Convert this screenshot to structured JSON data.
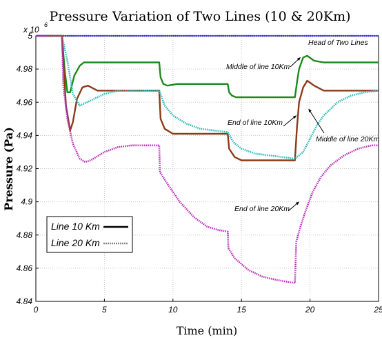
{
  "chart_data": {
    "type": "line",
    "title": "Pressure Variation of  Two Lines (10 & 20Km)",
    "xlabel": "Time (min)",
    "ylabel": "Pressure  (Pa)",
    "y_multiplier": "x 10",
    "y_multiplier_exp": "6",
    "xlim": [
      0,
      25
    ],
    "ylim": [
      4.84,
      5.0
    ],
    "x_ticks": [
      "0",
      "5",
      "10",
      "15",
      "20",
      "25"
    ],
    "y_ticks": [
      "4.84",
      "4.86",
      "4.88",
      "4.9",
      "4.92",
      "4.94",
      "4.96",
      "4.98",
      "5"
    ],
    "grid": true,
    "legend_position": "bottom-left",
    "legend": [
      {
        "label": "Line 10 Km",
        "color": "#000000",
        "style": "solid"
      },
      {
        "label": "Line 20 Km",
        "color": "#888888",
        "style": "dotted"
      }
    ],
    "annotations": [
      {
        "text": "Head of Two Lines",
        "at": [
          23.3,
          5.0
        ]
      },
      {
        "text": "Middle of line 10Km",
        "at": [
          19.3,
          4.987
        ]
      },
      {
        "text": "End of line 10Km",
        "at": [
          19.0,
          4.952
        ]
      },
      {
        "text": "Middle of line 20Km",
        "at": [
          19.9,
          4.956
        ]
      },
      {
        "text": "End of line 20Km",
        "at": [
          19.2,
          4.9
        ]
      }
    ],
    "series": [
      {
        "name": "Head of Two Lines",
        "color": "#3333dd",
        "style": "dotted",
        "points": [
          [
            0,
            5.0
          ],
          [
            25,
            5.0
          ]
        ]
      },
      {
        "name": "Middle of line 10Km",
        "color": "#1c8a1c",
        "style": "solid",
        "points": [
          [
            0,
            5.0
          ],
          [
            1.9,
            5.0
          ],
          [
            2.1,
            4.98
          ],
          [
            2.3,
            4.966
          ],
          [
            2.5,
            4.966
          ],
          [
            2.8,
            4.976
          ],
          [
            3.2,
            4.982
          ],
          [
            3.5,
            4.984
          ],
          [
            4.5,
            4.984
          ],
          [
            9.0,
            4.984
          ],
          [
            9.1,
            4.975
          ],
          [
            9.3,
            4.971
          ],
          [
            9.6,
            4.97
          ],
          [
            10.3,
            4.971
          ],
          [
            14.0,
            4.971
          ],
          [
            14.1,
            4.966
          ],
          [
            14.3,
            4.964
          ],
          [
            14.6,
            4.963
          ],
          [
            18.9,
            4.963
          ],
          [
            19.05,
            4.972
          ],
          [
            19.2,
            4.98
          ],
          [
            19.5,
            4.987
          ],
          [
            19.8,
            4.988
          ],
          [
            20.3,
            4.985
          ],
          [
            21.0,
            4.984
          ],
          [
            25,
            4.984
          ]
        ]
      },
      {
        "name": "End of line 10Km",
        "color": "#8b3a1a",
        "style": "solid",
        "points": [
          [
            0,
            5.0
          ],
          [
            1.9,
            5.0
          ],
          [
            2.0,
            4.985
          ],
          [
            2.2,
            4.958
          ],
          [
            2.5,
            4.943
          ],
          [
            2.7,
            4.948
          ],
          [
            3.0,
            4.962
          ],
          [
            3.4,
            4.969
          ],
          [
            3.8,
            4.97
          ],
          [
            4.5,
            4.967
          ],
          [
            9.0,
            4.967
          ],
          [
            9.1,
            4.95
          ],
          [
            9.4,
            4.944
          ],
          [
            10.0,
            4.941
          ],
          [
            14.0,
            4.941
          ],
          [
            14.1,
            4.932
          ],
          [
            14.5,
            4.927
          ],
          [
            15.0,
            4.925
          ],
          [
            18.9,
            4.925
          ],
          [
            19.05,
            4.945
          ],
          [
            19.2,
            4.96
          ],
          [
            19.5,
            4.969
          ],
          [
            19.8,
            4.973
          ],
          [
            20.3,
            4.97
          ],
          [
            21.0,
            4.967
          ],
          [
            25,
            4.967
          ]
        ]
      },
      {
        "name": "Middle of line 20Km",
        "color": "#33bbbb",
        "style": "dotted",
        "points": [
          [
            0,
            5.0
          ],
          [
            1.9,
            5.0
          ],
          [
            2.3,
            4.985
          ],
          [
            2.7,
            4.965
          ],
          [
            3.2,
            4.958
          ],
          [
            4.0,
            4.961
          ],
          [
            5.0,
            4.965
          ],
          [
            6.0,
            4.967
          ],
          [
            9.0,
            4.967
          ],
          [
            9.4,
            4.958
          ],
          [
            10.0,
            4.952
          ],
          [
            11.0,
            4.947
          ],
          [
            12.0,
            4.944
          ],
          [
            14.0,
            4.942
          ],
          [
            14.4,
            4.936
          ],
          [
            15.0,
            4.932
          ],
          [
            16.0,
            4.929
          ],
          [
            17.0,
            4.928
          ],
          [
            18.9,
            4.926
          ],
          [
            19.5,
            4.93
          ],
          [
            20.0,
            4.938
          ],
          [
            20.5,
            4.946
          ],
          [
            21.0,
            4.952
          ],
          [
            22.0,
            4.96
          ],
          [
            23.0,
            4.964
          ],
          [
            24.0,
            4.966
          ],
          [
            25,
            4.967
          ]
        ]
      },
      {
        "name": "End of line 20Km",
        "color": "#bb33bb",
        "style": "dotted",
        "points": [
          [
            0,
            5.0
          ],
          [
            1.9,
            5.0
          ],
          [
            2.0,
            4.97
          ],
          [
            2.3,
            4.95
          ],
          [
            2.7,
            4.935
          ],
          [
            3.2,
            4.926
          ],
          [
            3.6,
            4.924
          ],
          [
            4.0,
            4.925
          ],
          [
            5.0,
            4.93
          ],
          [
            6.0,
            4.933
          ],
          [
            7.0,
            4.934
          ],
          [
            9.0,
            4.934
          ],
          [
            9.05,
            4.918
          ],
          [
            9.5,
            4.912
          ],
          [
            10.5,
            4.9
          ],
          [
            11.5,
            4.891
          ],
          [
            12.5,
            4.885
          ],
          [
            13.3,
            4.883
          ],
          [
            14.0,
            4.882
          ],
          [
            14.05,
            4.872
          ],
          [
            14.5,
            4.866
          ],
          [
            15.5,
            4.859
          ],
          [
            16.5,
            4.855
          ],
          [
            17.5,
            4.853
          ],
          [
            18.9,
            4.851
          ],
          [
            19.0,
            4.876
          ],
          [
            19.3,
            4.885
          ],
          [
            19.7,
            4.895
          ],
          [
            20.2,
            4.906
          ],
          [
            20.8,
            4.915
          ],
          [
            21.5,
            4.922
          ],
          [
            22.5,
            4.928
          ],
          [
            23.5,
            4.932
          ],
          [
            24.5,
            4.934
          ],
          [
            25,
            4.934
          ]
        ]
      }
    ]
  }
}
